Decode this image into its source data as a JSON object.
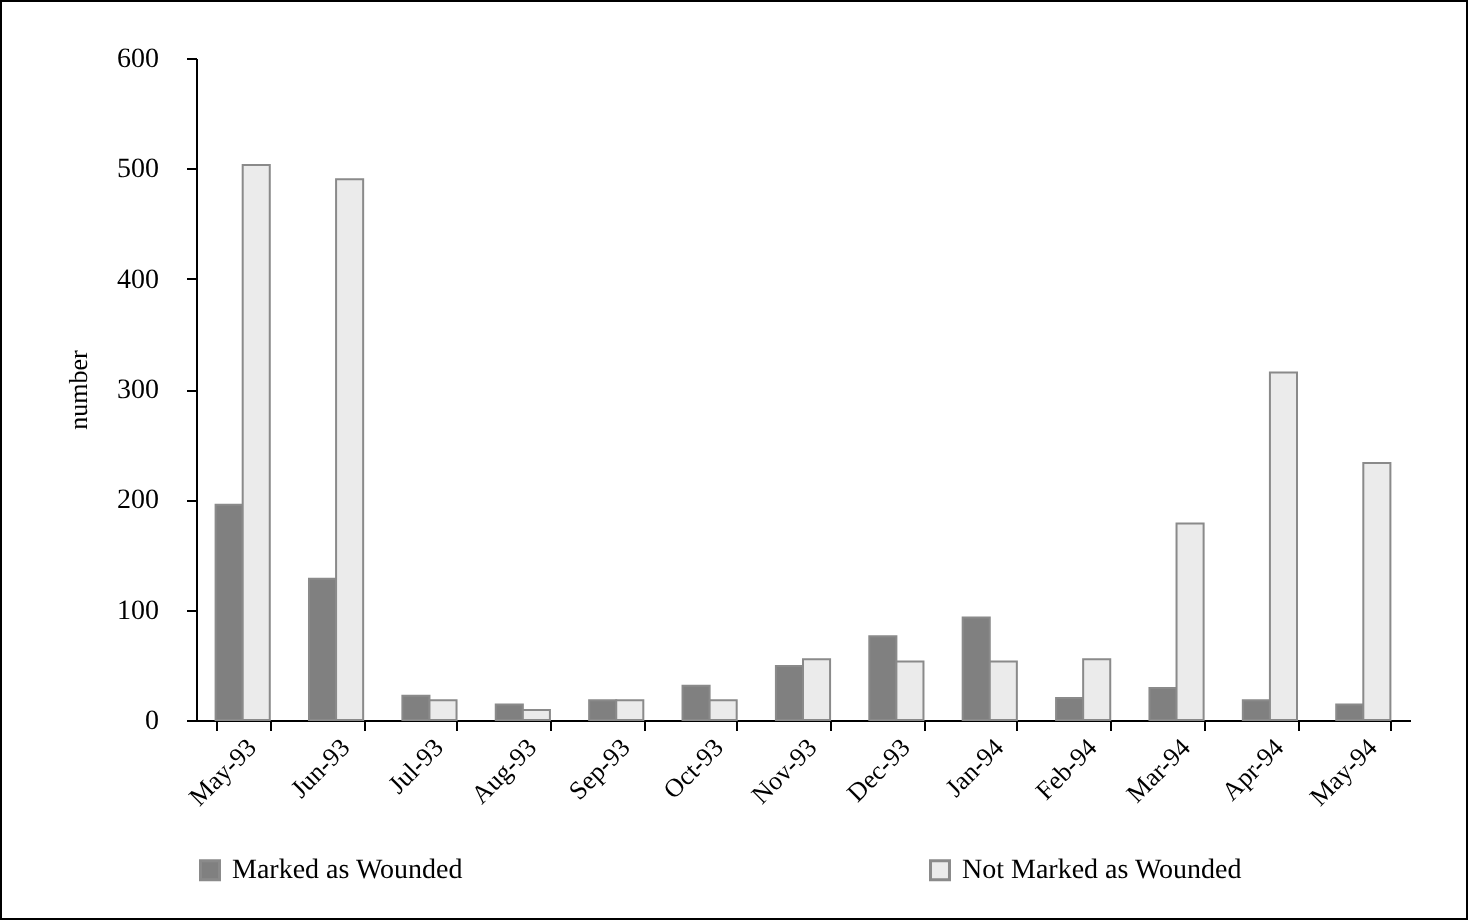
{
  "chart_data": {
    "type": "bar",
    "ylabel": "number",
    "categories": [
      "May-93",
      "Jun-93",
      "Jul-93",
      "Aug-93",
      "Sep-93",
      "Oct-93",
      "Nov-93",
      "Dec-93",
      "Jan-94",
      "Feb-94",
      "Mar-94",
      "Apr-94",
      "May-94"
    ],
    "series": [
      {
        "name": "Marked as Wounded",
        "color": "#808080",
        "values": [
          195,
          128,
          22,
          14,
          18,
          31,
          49,
          76,
          93,
          20,
          29,
          18,
          14
        ]
      },
      {
        "name": "Not Marked as Wounded",
        "color": "#ebebeb",
        "values": [
          503,
          490,
          18,
          9,
          18,
          18,
          55,
          53,
          53,
          55,
          178,
          315,
          233
        ]
      }
    ],
    "ylim": [
      0,
      600
    ],
    "yticks": [
      0,
      100,
      200,
      300,
      400,
      500,
      600
    ],
    "grid": false,
    "legend": "bottom"
  }
}
